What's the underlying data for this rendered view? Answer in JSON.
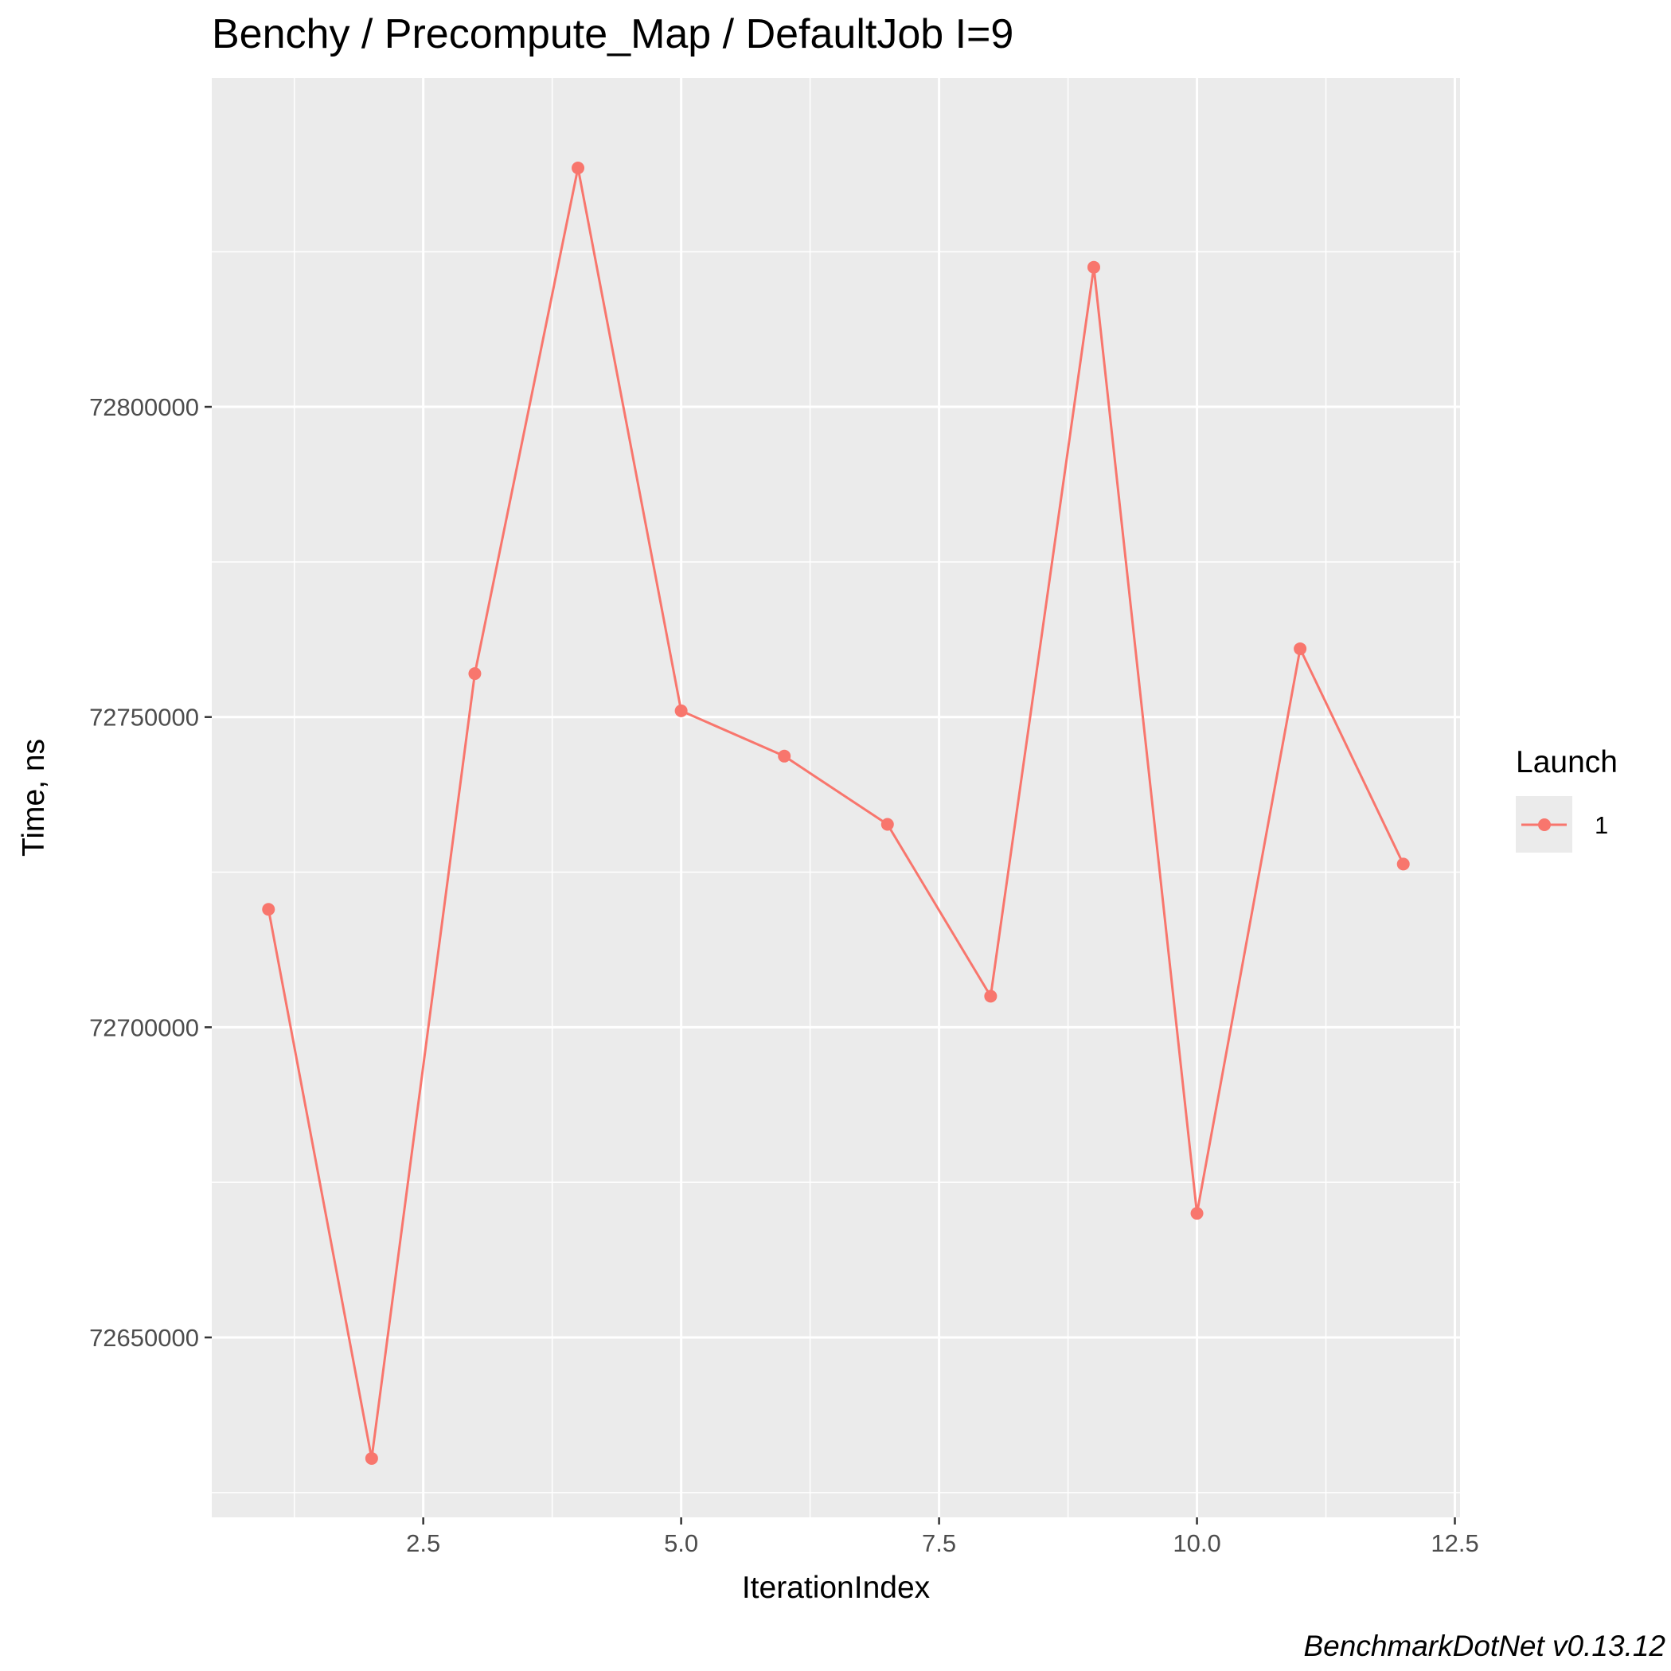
{
  "chart_data": {
    "type": "line",
    "title": "Benchy / Precompute_Map / DefaultJob I=9",
    "xlabel": "IterationIndex",
    "ylabel": "Time, ns",
    "caption": "BenchmarkDotNet v0.13.12",
    "xlim": [
      0.45,
      12.55
    ],
    "ylim": [
      72621000,
      72853000
    ],
    "x_ticks": [
      2.5,
      5.0,
      7.5,
      10.0,
      12.5
    ],
    "x_tick_labels": [
      "2.5",
      "5.0",
      "7.5",
      "10.0",
      "12.5"
    ],
    "y_ticks": [
      72650000,
      72700000,
      72750000,
      72800000
    ],
    "y_tick_labels": [
      "72650000",
      "72700000",
      "72750000",
      "72800000"
    ],
    "grid": true,
    "legend": {
      "title": "Launch",
      "position": "right"
    },
    "series": [
      {
        "name": "1",
        "color": "#F8766D",
        "x": [
          1,
          2,
          3,
          4,
          5,
          6,
          7,
          8,
          9,
          10,
          11,
          12
        ],
        "y": [
          72719000,
          72630500,
          72757000,
          72838500,
          72751000,
          72743700,
          72732700,
          72705000,
          72822500,
          72670000,
          72761000,
          72726300
        ]
      }
    ]
  }
}
